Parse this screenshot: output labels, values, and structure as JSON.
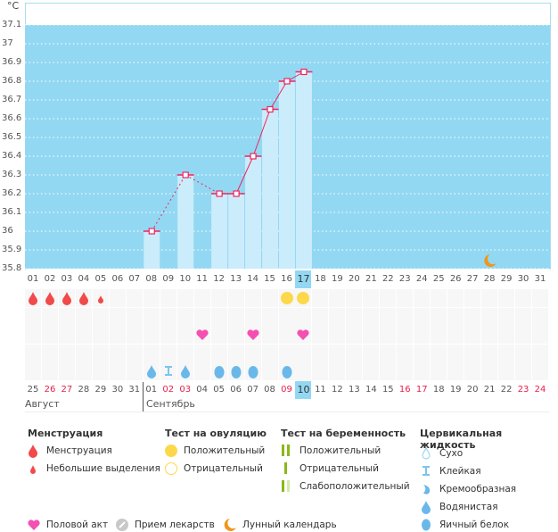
{
  "chart_data": {
    "type": "bar+line",
    "ylabel": "°C",
    "ylim": [
      35.8,
      37.1
    ],
    "yticks": [
      "37.1",
      "37",
      "36.9",
      "36.8",
      "36.7",
      "36.6",
      "36.5",
      "36.4",
      "36.3",
      "36.2",
      "36.1",
      "36",
      "35.9",
      "35.8"
    ],
    "cycle_days": [
      "01",
      "02",
      "03",
      "04",
      "05",
      "06",
      "07",
      "08",
      "09",
      "10",
      "11",
      "12",
      "13",
      "14",
      "15",
      "16",
      "17",
      "18",
      "19",
      "20",
      "21",
      "22",
      "23",
      "24",
      "25",
      "26",
      "27",
      "28",
      "29",
      "30",
      "31"
    ],
    "temperatures": [
      {
        "day": 8,
        "value": 36.0
      },
      {
        "day": 10,
        "value": 36.3
      },
      {
        "day": 12,
        "value": 36.2
      },
      {
        "day": 13,
        "value": 36.2
      },
      {
        "day": 14,
        "value": 36.4
      },
      {
        "day": 15,
        "value": 36.65
      },
      {
        "day": 16,
        "value": 36.8
      },
      {
        "day": 17,
        "value": 36.85
      }
    ],
    "current_day": 17,
    "colors": {
      "plot_bg": "#93d8f2",
      "bar": "#cbecfb",
      "line": "#f0245e",
      "weekend": "#e8204a"
    }
  },
  "dates": [
    "25",
    "26",
    "27",
    "28",
    "29",
    "30",
    "31",
    "01",
    "02",
    "03",
    "04",
    "05",
    "06",
    "07",
    "08",
    "09",
    "10",
    "11",
    "12",
    "13",
    "14",
    "15",
    "16",
    "17",
    "18",
    "19",
    "20",
    "21",
    "22",
    "23",
    "24"
  ],
  "red_dates": [
    1,
    2,
    8,
    9,
    15,
    22,
    23,
    29,
    30
  ],
  "months": {
    "august": "Август",
    "september": "Сентябрь"
  },
  "markers": {
    "menstruation": [
      {
        "day": 1,
        "type": "heavy"
      },
      {
        "day": 2,
        "type": "heavy"
      },
      {
        "day": 3,
        "type": "heavy"
      },
      {
        "day": 4,
        "type": "heavy"
      },
      {
        "day": 5,
        "type": "light"
      }
    ],
    "ovulation_positive": [
      16,
      17
    ],
    "intercourse": [
      11,
      14,
      17
    ],
    "fluid": [
      {
        "day": 8,
        "type": "watery"
      },
      {
        "day": 9,
        "type": "sticky"
      },
      {
        "day": 10,
        "type": "creamy"
      },
      {
        "day": 12,
        "type": "eggwhite"
      },
      {
        "day": 13,
        "type": "eggwhite"
      },
      {
        "day": 14,
        "type": "eggwhite"
      },
      {
        "day": 16,
        "type": "eggwhite"
      }
    ],
    "moon": [
      28
    ]
  },
  "legend": {
    "menstruation": {
      "title": "Менструация",
      "items": [
        "Менструация",
        "Небольшие выделения"
      ]
    },
    "ovulation": {
      "title": "Тест на овуляцию",
      "items": [
        "Положительный",
        "Отрицательный"
      ]
    },
    "pregnancy": {
      "title": "Тест на беременность",
      "items": [
        "Положительный",
        "Отрицательный",
        "Слабоположительный"
      ]
    },
    "fluid": {
      "title": "Цервикальная жидкость",
      "items": [
        "Сухо",
        "Клейкая",
        "Кремообразная",
        "Водянистая",
        "Яичный белок"
      ]
    },
    "other": [
      "Половой акт",
      "Прием лекарств",
      "Лунный календарь"
    ]
  }
}
